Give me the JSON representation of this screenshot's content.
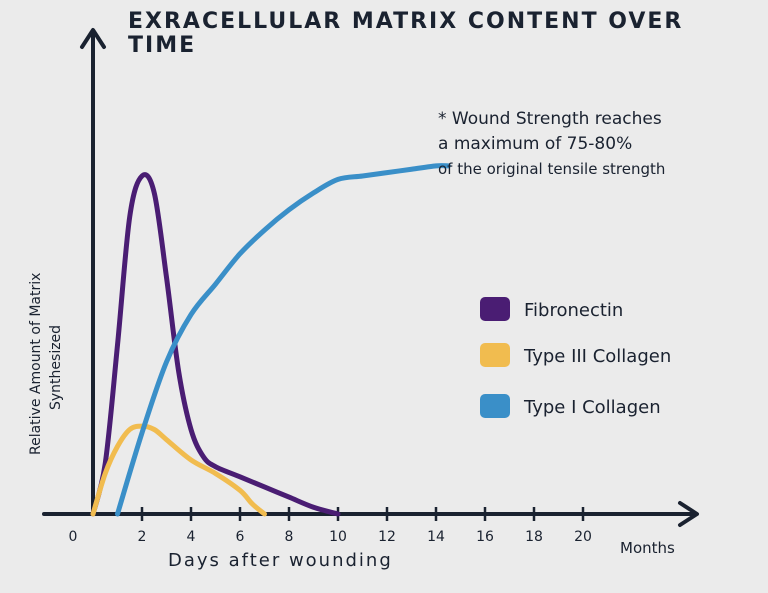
{
  "chart_data": {
    "type": "line",
    "title": "EXRACELLULAR MATRIX CONTENT OVER TIME",
    "title_lines": [
      "EXRACELLULAR MATRIX CONTENT OVER",
      "TIME"
    ],
    "xlabel": "Days after wounding",
    "xlabel_right": "Months",
    "ylabel": "Relative Amount of Matrix Synthesized",
    "ylabel_lines": [
      "Relative Amount of Matrix",
      "Synthesized"
    ],
    "x_ticks": [
      "0",
      "2",
      "4",
      "6",
      "8",
      "10",
      "12",
      "14",
      "16",
      "18",
      "20"
    ],
    "y_range": [
      0,
      100
    ],
    "grid": false,
    "legend_position": "right",
    "annotation_lines": [
      "* Wound Strength reaches",
      "a maximum of 75-80%",
      "of the original tensile strength"
    ],
    "series": [
      {
        "name": "Fibronectin",
        "color": "#4a1d73",
        "x": [
          0,
          0.5,
          1,
          1.5,
          2,
          2.5,
          3,
          3.5,
          4,
          4.5,
          5,
          6,
          7,
          8,
          9,
          10
        ],
        "y": [
          0,
          15,
          50,
          88,
          100,
          95,
          70,
          42,
          25,
          17,
          14,
          11,
          8,
          5,
          2,
          0
        ]
      },
      {
        "name": "Type III Collagen",
        "color": "#f1bc4f",
        "x": [
          0,
          0.5,
          1,
          1.5,
          2,
          2.5,
          3,
          4,
          5,
          6,
          6.5,
          7
        ],
        "y": [
          0,
          12,
          20,
          25,
          26,
          25,
          22,
          16,
          12,
          7,
          3,
          0
        ]
      },
      {
        "name": "Type I Collagen",
        "color": "#3a8fc8",
        "x": [
          1,
          2,
          3,
          4,
          5,
          6,
          7,
          8,
          9,
          10,
          11,
          12,
          13,
          14,
          14.5
        ],
        "y": [
          0,
          24,
          45,
          59,
          68,
          77,
          84,
          90,
          95,
          99,
          100,
          101,
          102,
          103,
          103
        ]
      }
    ]
  },
  "colors": {
    "axis": "#1a2230",
    "background": "#ebebeb"
  }
}
